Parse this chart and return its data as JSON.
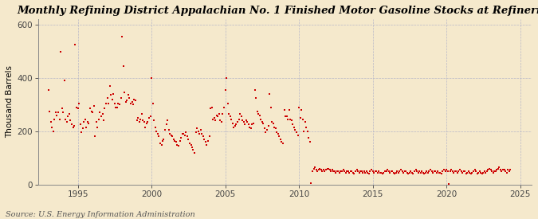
{
  "title": "Monthly Refining District Appalachian No. 1 Finished Motor Gasoline Stocks at Refineries",
  "ylabel": "Thousand Barrels",
  "source": "Source: U.S. Energy Information Administration",
  "background_color": "#f5e9cc",
  "marker_color": "#cc0000",
  "grid_color": "#b8b8c8",
  "xlim": [
    1992.3,
    2025.8
  ],
  "ylim": [
    0,
    620
  ],
  "yticks": [
    0,
    200,
    400,
    600
  ],
  "xticks": [
    1995,
    2000,
    2005,
    2010,
    2015,
    2020,
    2025
  ],
  "title_fontsize": 9.5,
  "ylabel_fontsize": 7.5,
  "source_fontsize": 7.0,
  "data": [
    [
      1993.0,
      355
    ],
    [
      1993.08,
      275
    ],
    [
      1993.17,
      235
    ],
    [
      1993.25,
      215
    ],
    [
      1993.33,
      200
    ],
    [
      1993.42,
      245
    ],
    [
      1993.5,
      270
    ],
    [
      1993.58,
      260
    ],
    [
      1993.67,
      270
    ],
    [
      1993.75,
      245
    ],
    [
      1993.83,
      498
    ],
    [
      1993.92,
      285
    ],
    [
      1994.0,
      270
    ],
    [
      1994.08,
      390
    ],
    [
      1994.17,
      245
    ],
    [
      1994.25,
      235
    ],
    [
      1994.33,
      255
    ],
    [
      1994.42,
      265
    ],
    [
      1994.5,
      240
    ],
    [
      1994.58,
      225
    ],
    [
      1994.67,
      215
    ],
    [
      1994.75,
      220
    ],
    [
      1994.83,
      525
    ],
    [
      1994.92,
      290
    ],
    [
      1995.0,
      285
    ],
    [
      1995.08,
      305
    ],
    [
      1995.17,
      225
    ],
    [
      1995.25,
      195
    ],
    [
      1995.33,
      210
    ],
    [
      1995.42,
      235
    ],
    [
      1995.5,
      245
    ],
    [
      1995.58,
      215
    ],
    [
      1995.67,
      235
    ],
    [
      1995.75,
      230
    ],
    [
      1995.83,
      285
    ],
    [
      1995.92,
      275
    ],
    [
      1996.0,
      270
    ],
    [
      1996.08,
      295
    ],
    [
      1996.17,
      180
    ],
    [
      1996.25,
      235
    ],
    [
      1996.33,
      215
    ],
    [
      1996.42,
      245
    ],
    [
      1996.5,
      270
    ],
    [
      1996.58,
      255
    ],
    [
      1996.67,
      265
    ],
    [
      1996.75,
      240
    ],
    [
      1996.83,
      285
    ],
    [
      1996.92,
      305
    ],
    [
      1997.0,
      325
    ],
    [
      1997.08,
      305
    ],
    [
      1997.17,
      370
    ],
    [
      1997.25,
      335
    ],
    [
      1997.33,
      320
    ],
    [
      1997.42,
      340
    ],
    [
      1997.5,
      305
    ],
    [
      1997.58,
      290
    ],
    [
      1997.67,
      290
    ],
    [
      1997.75,
      305
    ],
    [
      1997.83,
      300
    ],
    [
      1997.92,
      325
    ],
    [
      1998.0,
      555
    ],
    [
      1998.08,
      445
    ],
    [
      1998.17,
      345
    ],
    [
      1998.25,
      310
    ],
    [
      1998.33,
      315
    ],
    [
      1998.42,
      335
    ],
    [
      1998.5,
      325
    ],
    [
      1998.58,
      305
    ],
    [
      1998.67,
      310
    ],
    [
      1998.75,
      300
    ],
    [
      1998.83,
      320
    ],
    [
      1998.92,
      315
    ],
    [
      1999.0,
      240
    ],
    [
      1999.08,
      250
    ],
    [
      1999.17,
      235
    ],
    [
      1999.25,
      245
    ],
    [
      1999.33,
      265
    ],
    [
      1999.42,
      240
    ],
    [
      1999.5,
      235
    ],
    [
      1999.58,
      215
    ],
    [
      1999.67,
      230
    ],
    [
      1999.75,
      235
    ],
    [
      1999.83,
      250
    ],
    [
      1999.92,
      255
    ],
    [
      2000.0,
      400
    ],
    [
      2000.08,
      305
    ],
    [
      2000.17,
      240
    ],
    [
      2000.25,
      215
    ],
    [
      2000.33,
      200
    ],
    [
      2000.42,
      190
    ],
    [
      2000.5,
      180
    ],
    [
      2000.58,
      155
    ],
    [
      2000.67,
      150
    ],
    [
      2000.75,
      165
    ],
    [
      2000.83,
      170
    ],
    [
      2000.92,
      205
    ],
    [
      2001.0,
      225
    ],
    [
      2001.08,
      240
    ],
    [
      2001.17,
      205
    ],
    [
      2001.25,
      190
    ],
    [
      2001.33,
      185
    ],
    [
      2001.42,
      180
    ],
    [
      2001.5,
      170
    ],
    [
      2001.58,
      165
    ],
    [
      2001.67,
      160
    ],
    [
      2001.75,
      150
    ],
    [
      2001.83,
      145
    ],
    [
      2001.92,
      165
    ],
    [
      2002.0,
      175
    ],
    [
      2002.08,
      190
    ],
    [
      2002.17,
      190
    ],
    [
      2002.25,
      185
    ],
    [
      2002.33,
      195
    ],
    [
      2002.42,
      180
    ],
    [
      2002.5,
      170
    ],
    [
      2002.58,
      155
    ],
    [
      2002.67,
      150
    ],
    [
      2002.75,
      140
    ],
    [
      2002.83,
      130
    ],
    [
      2002.92,
      120
    ],
    [
      2003.0,
      195
    ],
    [
      2003.08,
      210
    ],
    [
      2003.17,
      200
    ],
    [
      2003.25,
      190
    ],
    [
      2003.33,
      205
    ],
    [
      2003.42,
      190
    ],
    [
      2003.5,
      180
    ],
    [
      2003.58,
      170
    ],
    [
      2003.67,
      160
    ],
    [
      2003.75,
      150
    ],
    [
      2003.83,
      165
    ],
    [
      2003.92,
      180
    ],
    [
      2004.0,
      285
    ],
    [
      2004.08,
      290
    ],
    [
      2004.17,
      245
    ],
    [
      2004.25,
      250
    ],
    [
      2004.33,
      240
    ],
    [
      2004.42,
      260
    ],
    [
      2004.5,
      255
    ],
    [
      2004.58,
      265
    ],
    [
      2004.67,
      240
    ],
    [
      2004.75,
      235
    ],
    [
      2004.83,
      265
    ],
    [
      2004.92,
      290
    ],
    [
      2005.0,
      355
    ],
    [
      2005.08,
      400
    ],
    [
      2005.17,
      305
    ],
    [
      2005.25,
      265
    ],
    [
      2005.33,
      255
    ],
    [
      2005.42,
      245
    ],
    [
      2005.5,
      230
    ],
    [
      2005.58,
      215
    ],
    [
      2005.67,
      220
    ],
    [
      2005.75,
      225
    ],
    [
      2005.83,
      235
    ],
    [
      2005.92,
      245
    ],
    [
      2006.0,
      265
    ],
    [
      2006.08,
      255
    ],
    [
      2006.17,
      240
    ],
    [
      2006.25,
      235
    ],
    [
      2006.33,
      225
    ],
    [
      2006.42,
      240
    ],
    [
      2006.5,
      235
    ],
    [
      2006.58,
      225
    ],
    [
      2006.67,
      215
    ],
    [
      2006.75,
      210
    ],
    [
      2006.83,
      225
    ],
    [
      2006.92,
      230
    ],
    [
      2007.0,
      355
    ],
    [
      2007.08,
      325
    ],
    [
      2007.17,
      275
    ],
    [
      2007.25,
      265
    ],
    [
      2007.33,
      260
    ],
    [
      2007.42,
      245
    ],
    [
      2007.5,
      235
    ],
    [
      2007.58,
      230
    ],
    [
      2007.67,
      210
    ],
    [
      2007.75,
      195
    ],
    [
      2007.83,
      205
    ],
    [
      2007.92,
      220
    ],
    [
      2008.0,
      340
    ],
    [
      2008.08,
      290
    ],
    [
      2008.17,
      235
    ],
    [
      2008.25,
      230
    ],
    [
      2008.33,
      215
    ],
    [
      2008.42,
      210
    ],
    [
      2008.5,
      195
    ],
    [
      2008.58,
      190
    ],
    [
      2008.67,
      180
    ],
    [
      2008.75,
      170
    ],
    [
      2008.83,
      160
    ],
    [
      2008.92,
      155
    ],
    [
      2009.0,
      280
    ],
    [
      2009.08,
      255
    ],
    [
      2009.17,
      255
    ],
    [
      2009.25,
      245
    ],
    [
      2009.33,
      280
    ],
    [
      2009.42,
      245
    ],
    [
      2009.5,
      240
    ],
    [
      2009.58,
      225
    ],
    [
      2009.67,
      215
    ],
    [
      2009.75,
      205
    ],
    [
      2009.83,
      195
    ],
    [
      2009.92,
      185
    ],
    [
      2010.0,
      290
    ],
    [
      2010.08,
      250
    ],
    [
      2010.17,
      280
    ],
    [
      2010.25,
      245
    ],
    [
      2010.33,
      200
    ],
    [
      2010.42,
      235
    ],
    [
      2010.5,
      215
    ],
    [
      2010.58,
      200
    ],
    [
      2010.67,
      175
    ],
    [
      2010.75,
      160
    ],
    [
      2010.83,
      5
    ],
    [
      2010.92,
      50
    ],
    [
      2011.0,
      60
    ],
    [
      2011.08,
      65
    ],
    [
      2011.17,
      55
    ],
    [
      2011.25,
      50
    ],
    [
      2011.33,
      55
    ],
    [
      2011.42,
      60
    ],
    [
      2011.5,
      55
    ],
    [
      2011.58,
      50
    ],
    [
      2011.67,
      55
    ],
    [
      2011.75,
      50
    ],
    [
      2011.83,
      55
    ],
    [
      2011.92,
      60
    ],
    [
      2012.0,
      60
    ],
    [
      2012.08,
      55
    ],
    [
      2012.17,
      50
    ],
    [
      2012.25,
      55
    ],
    [
      2012.33,
      50
    ],
    [
      2012.42,
      50
    ],
    [
      2012.5,
      45
    ],
    [
      2012.58,
      50
    ],
    [
      2012.67,
      50
    ],
    [
      2012.75,
      45
    ],
    [
      2012.83,
      50
    ],
    [
      2012.92,
      50
    ],
    [
      2013.0,
      55
    ],
    [
      2013.08,
      50
    ],
    [
      2013.17,
      45
    ],
    [
      2013.25,
      50
    ],
    [
      2013.33,
      50
    ],
    [
      2013.42,
      45
    ],
    [
      2013.5,
      50
    ],
    [
      2013.58,
      50
    ],
    [
      2013.67,
      45
    ],
    [
      2013.75,
      40
    ],
    [
      2013.83,
      50
    ],
    [
      2013.92,
      55
    ],
    [
      2014.0,
      50
    ],
    [
      2014.08,
      45
    ],
    [
      2014.17,
      50
    ],
    [
      2014.25,
      50
    ],
    [
      2014.33,
      45
    ],
    [
      2014.42,
      50
    ],
    [
      2014.5,
      45
    ],
    [
      2014.58,
      50
    ],
    [
      2014.67,
      45
    ],
    [
      2014.75,
      40
    ],
    [
      2014.83,
      50
    ],
    [
      2014.92,
      55
    ],
    [
      2015.0,
      50
    ],
    [
      2015.08,
      45
    ],
    [
      2015.17,
      50
    ],
    [
      2015.25,
      50
    ],
    [
      2015.33,
      45
    ],
    [
      2015.42,
      50
    ],
    [
      2015.5,
      45
    ],
    [
      2015.58,
      45
    ],
    [
      2015.67,
      40
    ],
    [
      2015.75,
      45
    ],
    [
      2015.83,
      50
    ],
    [
      2015.92,
      50
    ],
    [
      2016.0,
      55
    ],
    [
      2016.08,
      50
    ],
    [
      2016.17,
      45
    ],
    [
      2016.25,
      50
    ],
    [
      2016.33,
      50
    ],
    [
      2016.42,
      45
    ],
    [
      2016.5,
      40
    ],
    [
      2016.58,
      45
    ],
    [
      2016.67,
      50
    ],
    [
      2016.75,
      45
    ],
    [
      2016.83,
      50
    ],
    [
      2016.92,
      55
    ],
    [
      2017.0,
      50
    ],
    [
      2017.08,
      45
    ],
    [
      2017.17,
      50
    ],
    [
      2017.25,
      50
    ],
    [
      2017.33,
      45
    ],
    [
      2017.42,
      40
    ],
    [
      2017.5,
      45
    ],
    [
      2017.58,
      50
    ],
    [
      2017.67,
      45
    ],
    [
      2017.75,
      40
    ],
    [
      2017.83,
      50
    ],
    [
      2017.92,
      55
    ],
    [
      2018.0,
      50
    ],
    [
      2018.08,
      45
    ],
    [
      2018.17,
      50
    ],
    [
      2018.25,
      45
    ],
    [
      2018.33,
      50
    ],
    [
      2018.42,
      45
    ],
    [
      2018.5,
      40
    ],
    [
      2018.58,
      45
    ],
    [
      2018.67,
      50
    ],
    [
      2018.75,
      45
    ],
    [
      2018.83,
      50
    ],
    [
      2018.92,
      55
    ],
    [
      2019.0,
      50
    ],
    [
      2019.08,
      45
    ],
    [
      2019.17,
      50
    ],
    [
      2019.25,
      50
    ],
    [
      2019.33,
      45
    ],
    [
      2019.42,
      50
    ],
    [
      2019.5,
      45
    ],
    [
      2019.58,
      45
    ],
    [
      2019.67,
      40
    ],
    [
      2019.75,
      50
    ],
    [
      2019.83,
      55
    ],
    [
      2019.92,
      50
    ],
    [
      2020.0,
      55
    ],
    [
      2020.08,
      50
    ],
    [
      2020.17,
      2
    ],
    [
      2020.25,
      50
    ],
    [
      2020.33,
      55
    ],
    [
      2020.42,
      50
    ],
    [
      2020.5,
      45
    ],
    [
      2020.58,
      50
    ],
    [
      2020.67,
      50
    ],
    [
      2020.75,
      45
    ],
    [
      2020.83,
      50
    ],
    [
      2020.92,
      55
    ],
    [
      2021.0,
      50
    ],
    [
      2021.08,
      45
    ],
    [
      2021.17,
      50
    ],
    [
      2021.25,
      50
    ],
    [
      2021.33,
      40
    ],
    [
      2021.42,
      45
    ],
    [
      2021.5,
      50
    ],
    [
      2021.58,
      45
    ],
    [
      2021.67,
      40
    ],
    [
      2021.75,
      45
    ],
    [
      2021.83,
      50
    ],
    [
      2021.92,
      55
    ],
    [
      2022.0,
      50
    ],
    [
      2022.08,
      40
    ],
    [
      2022.17,
      45
    ],
    [
      2022.25,
      50
    ],
    [
      2022.33,
      45
    ],
    [
      2022.42,
      40
    ],
    [
      2022.5,
      45
    ],
    [
      2022.58,
      50
    ],
    [
      2022.67,
      45
    ],
    [
      2022.75,
      50
    ],
    [
      2022.83,
      55
    ],
    [
      2022.92,
      60
    ],
    [
      2023.0,
      55
    ],
    [
      2023.08,
      50
    ],
    [
      2023.17,
      45
    ],
    [
      2023.25,
      50
    ],
    [
      2023.33,
      50
    ],
    [
      2023.42,
      55
    ],
    [
      2023.5,
      60
    ],
    [
      2023.58,
      65
    ],
    [
      2023.67,
      55
    ],
    [
      2023.75,
      50
    ],
    [
      2023.83,
      55
    ],
    [
      2023.92,
      55
    ],
    [
      2024.0,
      50
    ],
    [
      2024.08,
      45
    ],
    [
      2024.17,
      55
    ],
    [
      2024.25,
      50
    ],
    [
      2024.33,
      55
    ]
  ]
}
